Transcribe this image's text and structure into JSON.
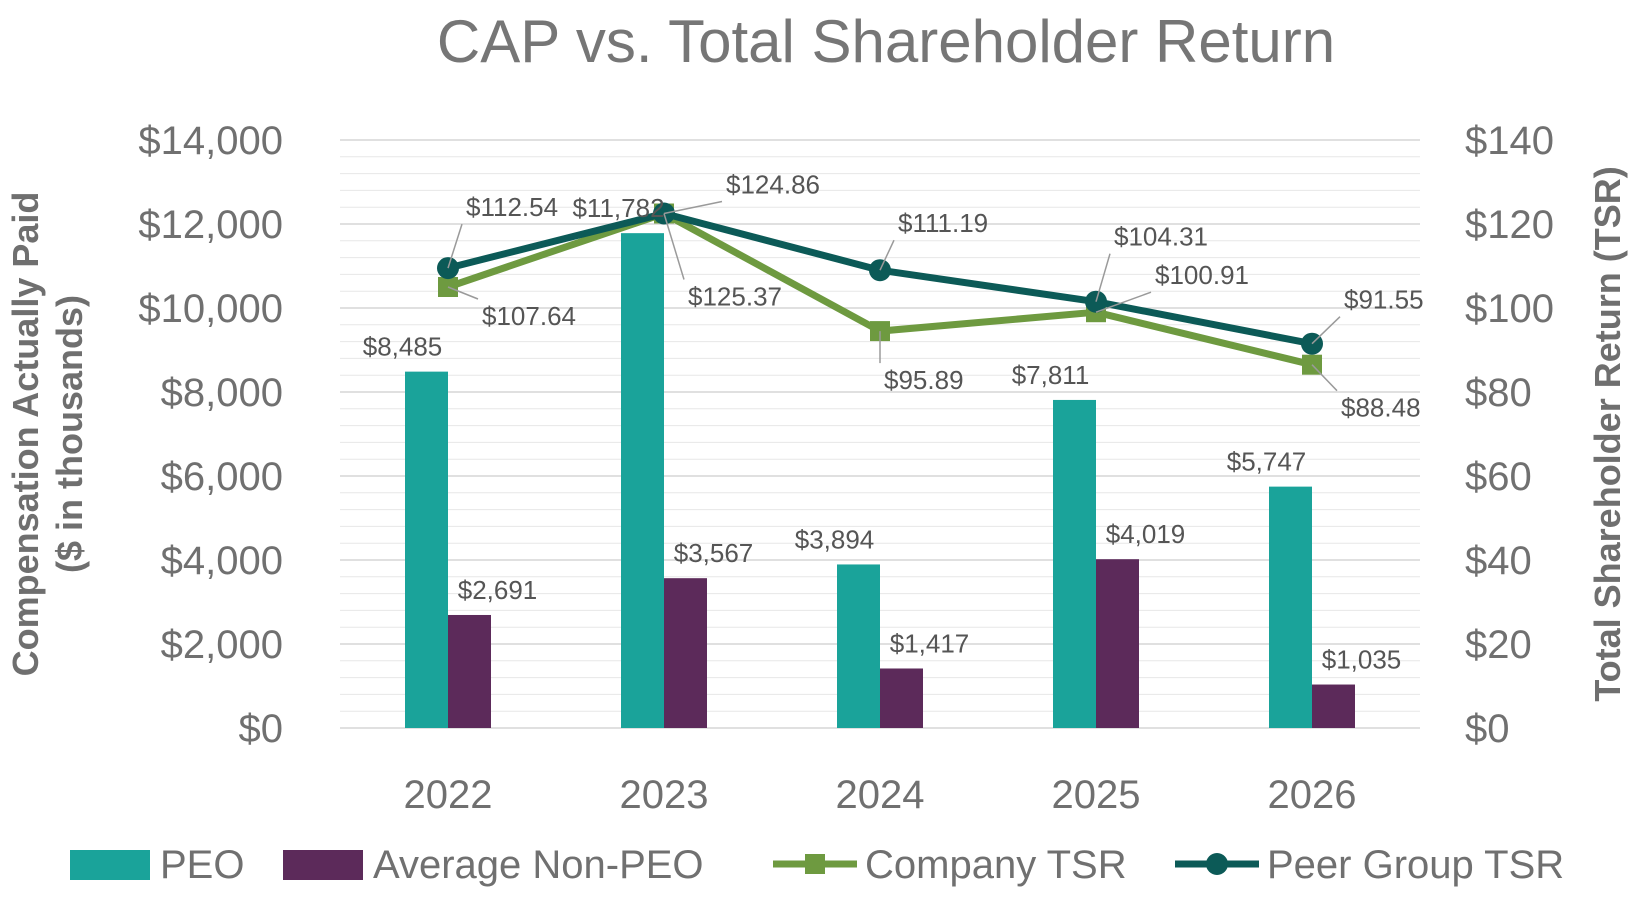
{
  "chart_data": {
    "type": "bar",
    "title": "CAP vs. Total Shareholder Return",
    "ylabel_left": [
      "Compensation Actually Paid",
      "($ in thousands)"
    ],
    "ylabel_right": "Total Shareholder Return (TSR)",
    "categories": [
      "2022",
      "2023",
      "2024",
      "2025",
      "2026"
    ],
    "y_left": {
      "min": 0,
      "max": 14000,
      "step": 2000,
      "tick_labels": [
        "$0",
        "$2,000",
        "$4,000",
        "$6,000",
        "$8,000",
        "$10,000",
        "$12,000",
        "$14,000"
      ]
    },
    "y_right": {
      "min": 0,
      "max": 140,
      "step": 20,
      "tick_labels": [
        "$0",
        "$20",
        "$40",
        "$60",
        "$80",
        "$100",
        "$120",
        "$140"
      ]
    },
    "grid": true,
    "legend_position": "bottom",
    "bar_series": [
      {
        "name": "PEO",
        "color": "#1aa39a",
        "values": [
          8485,
          11782,
          3894,
          7811,
          5747
        ],
        "labels": [
          "$8,485",
          "$11,782",
          "$3,894",
          "$7,811",
          "$5,747"
        ]
      },
      {
        "name": "Average Non-PEO",
        "color": "#5c2a5a",
        "values": [
          2691,
          3567,
          1417,
          4019,
          1035
        ],
        "labels": [
          "$2,691",
          "$3,567",
          "$1,417",
          "$4,019",
          "$1,035"
        ]
      }
    ],
    "line_series": [
      {
        "name": "Company TSR",
        "color": "#6e9a40",
        "marker": "square",
        "axis": "right",
        "values": [
          105.0,
          122.5,
          94.5,
          99.0,
          86.5
        ],
        "labels": [
          "$107.64",
          "$125.37",
          "$95.89",
          "$100.91",
          "$88.48"
        ]
      },
      {
        "name": "Peer Group TSR",
        "color": "#0c5a57",
        "marker": "circle",
        "axis": "right",
        "values": [
          109.5,
          122.5,
          109.0,
          101.5,
          91.5
        ],
        "labels": [
          "$112.54",
          "$124.86",
          "$111.19",
          "$104.31",
          "$91.55"
        ]
      }
    ]
  }
}
